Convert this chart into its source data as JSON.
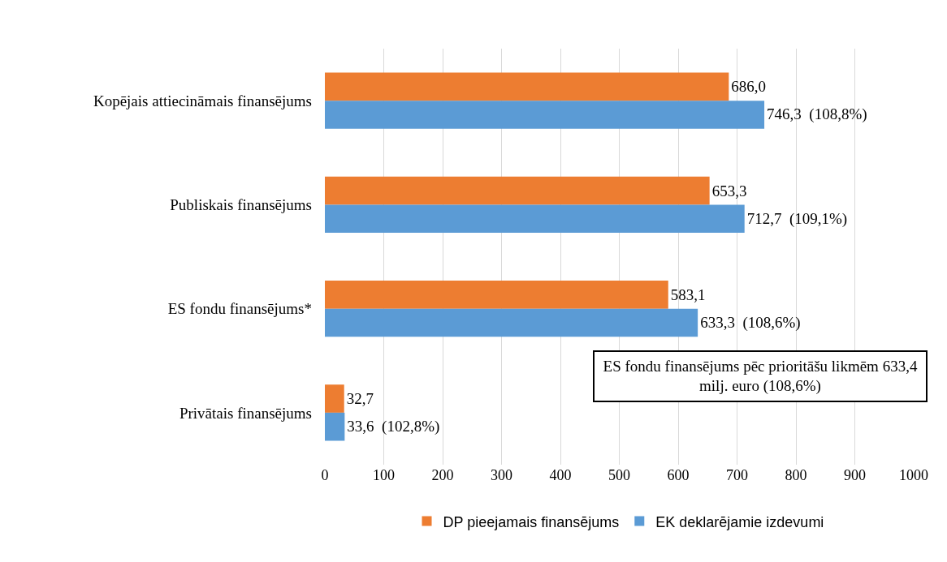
{
  "chart_data": {
    "type": "bar",
    "orientation": "horizontal",
    "categories": [
      "Kopējais attiecināmais finansējums",
      "Publiskais finansējums",
      "ES fondu finansējums*",
      "Privātais finansējums"
    ],
    "series": [
      {
        "name": "DP pieejamais finansējums",
        "color": "#ed7d31",
        "values": [
          686.0,
          653.3,
          583.1,
          32.7
        ],
        "value_labels": [
          "686,0",
          "653,3",
          "583,1",
          "32,7"
        ]
      },
      {
        "name": "EK deklarējamie izdevumi",
        "color": "#5b9bd5",
        "values": [
          746.3,
          712.7,
          633.3,
          33.6
        ],
        "value_labels": [
          "746,3  (108,8%)",
          "712,7  (109,1%)",
          "633,3  (108,6%)",
          "33,6  (102,8%)"
        ]
      }
    ],
    "xlim": [
      0,
      1000
    ],
    "xticks": [
      0,
      100,
      200,
      300,
      400,
      500,
      600,
      700,
      800,
      900,
      1000
    ],
    "grid": "x",
    "legend": "bottom",
    "annotations": [
      "ES fondu finansējums  pēc prioritāšu likmēm  633,4 milj. euro (108,6%)"
    ]
  }
}
